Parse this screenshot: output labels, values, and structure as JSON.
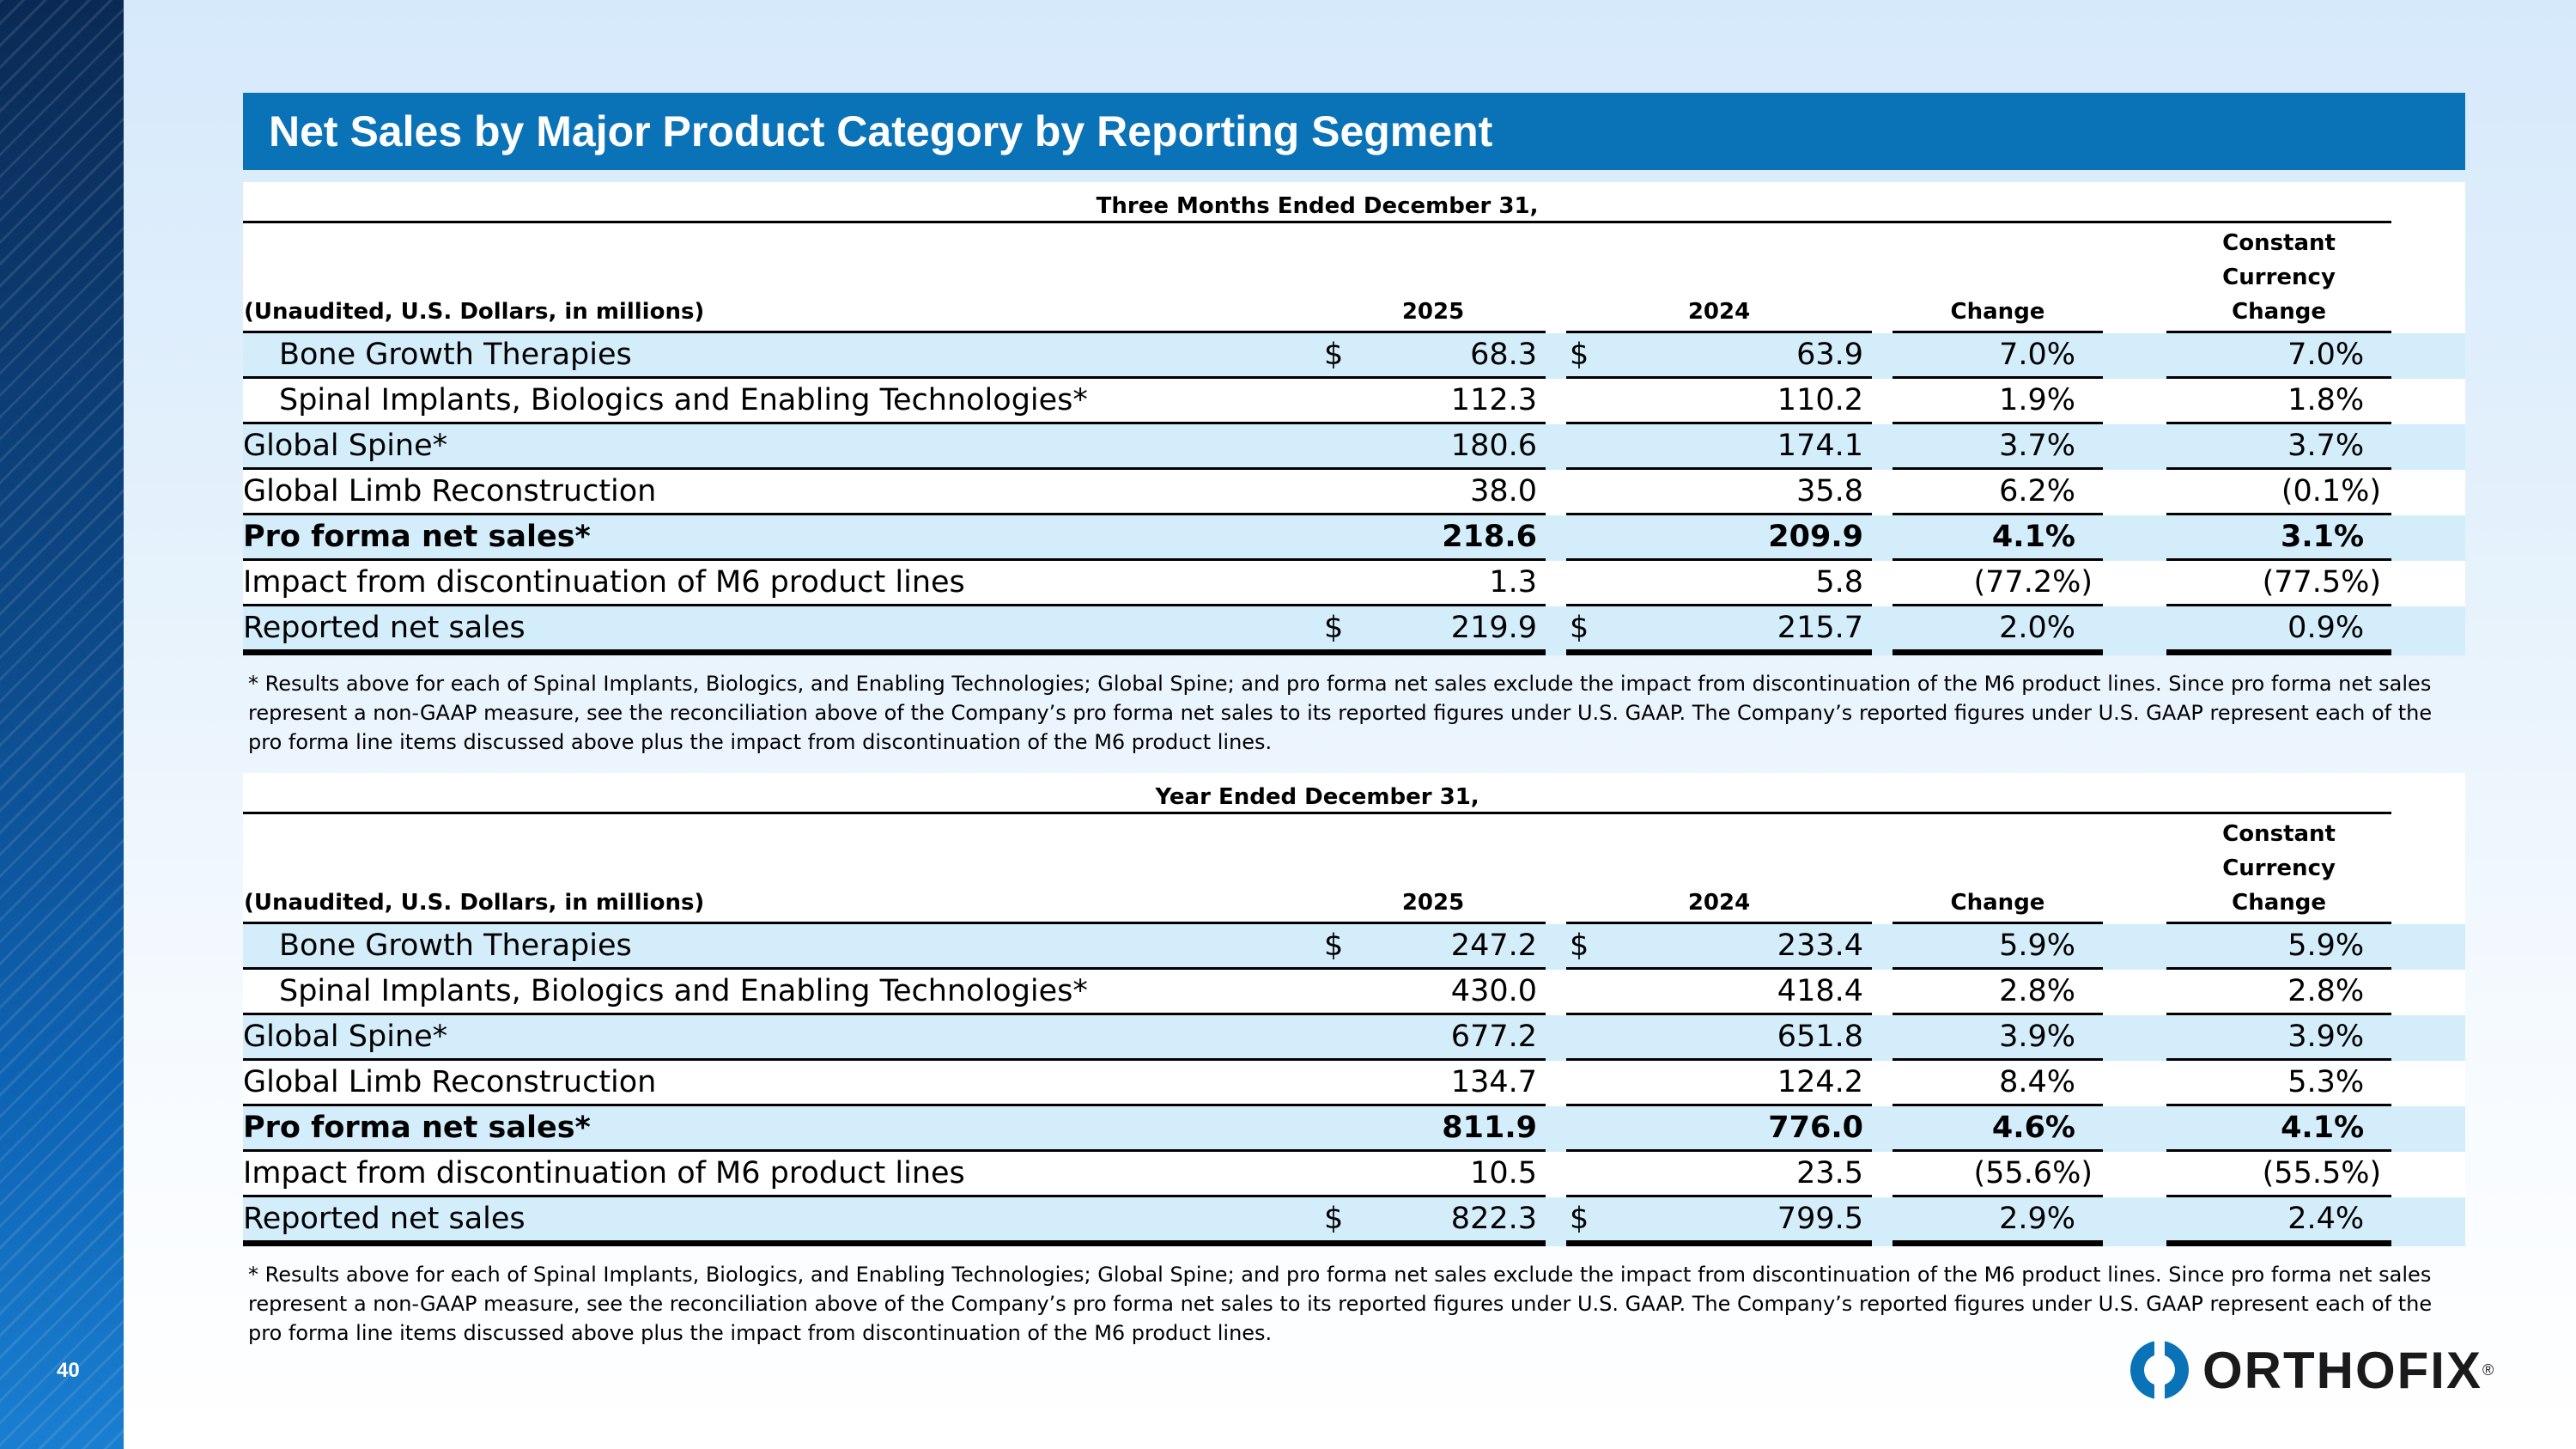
{
  "page": {
    "number": "40",
    "title": "Net Sales by Major Product Category by Reporting Segment"
  },
  "brand": {
    "logo_text": "ORTHOFIX",
    "logo_mark": "®",
    "accent": "#0a73b8",
    "row_shade": "#d4edfb"
  },
  "quarter": {
    "period_header": "Three Months Ended December 31,",
    "unit_label": "(Unaudited, U.S. Dollars, in millions)",
    "col_2025": "2025",
    "col_2024": "2024",
    "col_change": "Change",
    "col_cc_line1": "Constant",
    "col_cc_line2": "Currency",
    "col_cc_line3": "Change",
    "rows": [
      {
        "label": "Bone Growth Therapies",
        "sym_a": "$",
        "v2025": "68.3",
        "sym_b": "$",
        "v2024": "63.9",
        "change": "7.0%",
        "cc": "7.0%"
      },
      {
        "label": "Spinal Implants, Biologics and Enabling Technologies*",
        "sym_a": "",
        "v2025": "112.3",
        "sym_b": "",
        "v2024": "110.2",
        "change": "1.9%",
        "cc": "1.8%"
      },
      {
        "label": "Global Spine*",
        "sym_a": "",
        "v2025": "180.6",
        "sym_b": "",
        "v2024": "174.1",
        "change": "3.7%",
        "cc": "3.7%"
      },
      {
        "label": "Global Limb Reconstruction",
        "sym_a": "",
        "v2025": "38.0",
        "sym_b": "",
        "v2024": "35.8",
        "change": "6.2%",
        "cc": "(0.1%)"
      },
      {
        "label": "Pro forma net sales*",
        "sym_a": "",
        "v2025": "218.6",
        "sym_b": "",
        "v2024": "209.9",
        "change": "4.1%",
        "cc": "3.1%"
      },
      {
        "label": "Impact from discontinuation of M6 product lines",
        "sym_a": "",
        "v2025": "1.3",
        "sym_b": "",
        "v2024": "5.8",
        "change": "(77.2%)",
        "cc": "(77.5%)"
      },
      {
        "label": "Reported net sales",
        "sym_a": "$",
        "v2025": "219.9",
        "sym_b": "$",
        "v2024": "215.7",
        "change": "2.0%",
        "cc": "0.9%"
      }
    ],
    "footnote": "* Results above for each of Spinal Implants, Biologics, and Enabling Technologies; Global Spine; and pro forma net sales exclude the impact from discontinuation of the M6 product lines. Since pro forma net sales represent a non-GAAP measure, see the reconciliation above of the Company’s pro forma net sales to its reported figures under U.S. GAAP. The Company’s reported figures under U.S. GAAP represent each of the pro forma line items discussed above plus the impact from discontinuation of the M6 product lines."
  },
  "year": {
    "period_header": "Year Ended December 31,",
    "unit_label": "(Unaudited, U.S. Dollars, in millions)",
    "col_2025": "2025",
    "col_2024": "2024",
    "col_change": "Change",
    "col_cc_line1": "Constant",
    "col_cc_line2": "Currency",
    "col_cc_line3": "Change",
    "rows": [
      {
        "label": "Bone Growth Therapies",
        "sym_a": "$",
        "v2025": "247.2",
        "sym_b": "$",
        "v2024": "233.4",
        "change": "5.9%",
        "cc": "5.9%"
      },
      {
        "label": "Spinal Implants, Biologics and Enabling Technologies*",
        "sym_a": "",
        "v2025": "430.0",
        "sym_b": "",
        "v2024": "418.4",
        "change": "2.8%",
        "cc": "2.8%"
      },
      {
        "label": "Global Spine*",
        "sym_a": "",
        "v2025": "677.2",
        "sym_b": "",
        "v2024": "651.8",
        "change": "3.9%",
        "cc": "3.9%"
      },
      {
        "label": "Global Limb Reconstruction",
        "sym_a": "",
        "v2025": "134.7",
        "sym_b": "",
        "v2024": "124.2",
        "change": "8.4%",
        "cc": "5.3%"
      },
      {
        "label": "Pro forma net sales*",
        "sym_a": "",
        "v2025": "811.9",
        "sym_b": "",
        "v2024": "776.0",
        "change": "4.6%",
        "cc": "4.1%"
      },
      {
        "label": "Impact from discontinuation of M6 product lines",
        "sym_a": "",
        "v2025": "10.5",
        "sym_b": "",
        "v2024": "23.5",
        "change": "(55.6%)",
        "cc": "(55.5%)"
      },
      {
        "label": "Reported net sales",
        "sym_a": "$",
        "v2025": "822.3",
        "sym_b": "$",
        "v2024": "799.5",
        "change": "2.9%",
        "cc": "2.4%"
      }
    ],
    "footnote": "* Results above for each of Spinal Implants, Biologics, and Enabling Technologies; Global Spine; and pro forma net sales exclude the impact from discontinuation of the M6 product lines. Since pro forma net sales represent a non-GAAP measure, see the reconciliation above of the Company’s pro forma net sales to its reported figures under U.S. GAAP. The Company’s reported figures under U.S. GAAP represent each of the pro forma line items discussed above plus the impact from discontinuation of the M6 product lines."
  }
}
